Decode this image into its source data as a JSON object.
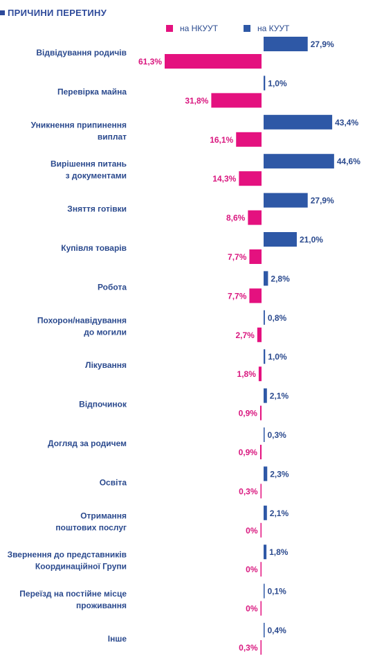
{
  "title": "ПРИЧИНИ ПЕРЕТИНУ",
  "colors": {
    "kuut": "#2e58a6",
    "nkuut": "#e4117f",
    "title": "#2e4a9a"
  },
  "legend": [
    {
      "name": "на НКУУТ",
      "color": "#e4117f"
    },
    {
      "name": "на КУУТ",
      "color": "#2e58a6"
    }
  ],
  "chart_data": {
    "type": "bar",
    "orientation": "horizontal-diverging",
    "title": "ПРИЧИНИ ПЕРЕТИНУ",
    "legend_position": "top-right",
    "grid": false,
    "unit": "%",
    "categories": [
      [
        "Відвідування родичів"
      ],
      [
        "Перевірка майна"
      ],
      [
        "Уникнення припинення",
        "виплат"
      ],
      [
        "Вирішення питань",
        "з документами"
      ],
      [
        "Зняття готівки"
      ],
      [
        "Купівля товарів"
      ],
      [
        "Робота"
      ],
      [
        "Похорон/навідування",
        "до могили"
      ],
      [
        "Лікування"
      ],
      [
        "Відпочинок"
      ],
      [
        "Догляд за родичем"
      ],
      [
        "Освіта"
      ],
      [
        "Отримання",
        "поштових послуг"
      ],
      [
        "Звернення до представників",
        "Координаційної Групи"
      ],
      [
        "Переїзд на постійне місце",
        "проживання"
      ],
      [
        "Інше"
      ]
    ],
    "series": [
      {
        "name": "на КУУТ",
        "values": [
          27.9,
          1.0,
          43.4,
          44.6,
          27.9,
          21.0,
          2.8,
          0.8,
          1.0,
          2.1,
          0.3,
          2.3,
          2.1,
          1.8,
          0.1,
          0.4
        ],
        "labels": [
          "27,9%",
          "1,0%",
          "43,4%",
          "44,6%",
          "27,9%",
          "21,0%",
          "2,8%",
          "0,8%",
          "1,0%",
          "2,1%",
          "0,3%",
          "2,3%",
          "2,1%",
          "1,8%",
          "0,1%",
          "0,4%"
        ]
      },
      {
        "name": "на НКУУТ",
        "values": [
          61.3,
          31.8,
          16.1,
          14.3,
          8.6,
          7.7,
          7.7,
          2.7,
          1.8,
          0.9,
          0.9,
          0.3,
          0,
          0,
          0,
          0.3
        ],
        "labels": [
          "61,3%",
          "31,8%",
          "16,1%",
          "14,3%",
          "8,6%",
          "7,7%",
          "7,7%",
          "2,7%",
          "1,8%",
          "0,9%",
          "0,9%",
          "0,3%",
          "0%",
          "0%",
          "0%",
          "0,3%"
        ]
      }
    ]
  }
}
